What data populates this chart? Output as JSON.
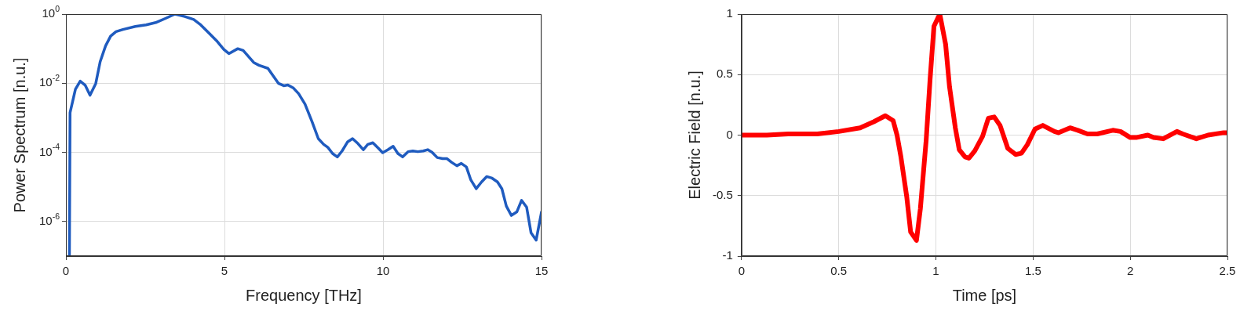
{
  "chart_data": [
    {
      "type": "line",
      "xlabel": "Frequency [THz]",
      "ylabel": "Power Spectrum [n.u.]",
      "log": "y",
      "grid": true,
      "legend": false,
      "marker": "none",
      "line_style": "solid",
      "xlim": [
        0,
        15
      ],
      "xticks": [
        0,
        5,
        10,
        15
      ],
      "ylim": [
        1e-07,
        1
      ],
      "yticks": [
        {
          "value": 1e-06,
          "label": "10$^{-6}$"
        },
        {
          "value": 0.0001,
          "label": "10$^{-4}$"
        },
        {
          "value": 0.01,
          "label": "10$^{-2}$"
        },
        {
          "value": 1,
          "label": "10$^{0}$"
        }
      ],
      "series": [
        {
          "color": "#1f5bbf",
          "x": [
            0.11,
            0.13,
            0.3,
            0.45,
            0.61,
            0.76,
            0.94,
            1.08,
            1.25,
            1.41,
            1.58,
            1.8,
            2.19,
            2.53,
            2.86,
            3.14,
            3.44,
            3.75,
            4.03,
            4.25,
            4.53,
            4.75,
            4.98,
            5.14,
            5.42,
            5.59,
            5.92,
            6.09,
            6.37,
            6.7,
            6.87,
            7.0,
            7.18,
            7.34,
            7.54,
            7.76,
            7.96,
            8.13,
            8.26,
            8.41,
            8.56,
            8.71,
            8.88,
            9.04,
            9.21,
            9.38,
            9.52,
            9.68,
            9.86,
            9.99,
            10.16,
            10.32,
            10.47,
            10.62,
            10.79,
            10.94,
            11.1,
            11.27,
            11.41,
            11.55,
            11.71,
            11.88,
            12.02,
            12.16,
            12.33,
            12.47,
            12.63,
            12.77,
            12.94,
            13.11,
            13.27,
            13.44,
            13.61,
            13.75,
            13.89,
            14.05,
            14.22,
            14.37,
            14.53,
            14.67,
            14.83,
            15.0
          ],
          "values": [
            1e-07,
            0.0014,
            0.0067,
            0.0115,
            0.0087,
            0.0045,
            0.0098,
            0.042,
            0.12,
            0.23,
            0.31,
            0.36,
            0.44,
            0.49,
            0.58,
            0.75,
            1.0,
            0.85,
            0.7,
            0.49,
            0.27,
            0.17,
            0.095,
            0.072,
            0.1,
            0.089,
            0.04,
            0.033,
            0.027,
            0.01,
            0.0085,
            0.0089,
            0.0072,
            0.005,
            0.0025,
            0.00078,
            0.00025,
            0.00017,
            0.00014,
            9.3e-05,
            7.4e-05,
            0.00011,
            0.0002,
            0.00025,
            0.00018,
            0.00012,
            0.00017,
            0.00019,
            0.00013,
            9.8e-05,
            0.00012,
            0.00015,
            9.3e-05,
            7.4e-05,
            0.000105,
            0.00011,
            0.000105,
            0.00011,
            0.00012,
            0.0001,
            7.1e-05,
            6.6e-05,
            6.6e-05,
            5.2e-05,
            4.1e-05,
            4.8e-05,
            3.8e-05,
            1.6e-05,
            8.9e-06,
            1.4e-05,
            2e-05,
            1.8e-05,
            1.4e-05,
            8.9e-06,
            2.8e-06,
            1.5e-06,
            1.9e-06,
            4.1e-06,
            2.6e-06,
            4.7e-07,
            2.9e-07,
            1.9e-06
          ]
        }
      ]
    },
    {
      "type": "line",
      "xlabel": "Time [ps]",
      "ylabel": "Electric Field [n.u.]",
      "grid": true,
      "legend": false,
      "marker": "none",
      "line_style": "solid",
      "xlim": [
        0,
        2.5
      ],
      "xticks": [
        0,
        0.5,
        1,
        1.5,
        2,
        2.5
      ],
      "ylim": [
        -1,
        1
      ],
      "yticks": [
        -1,
        -0.5,
        0,
        0.5,
        1
      ],
      "series": [
        {
          "color": "#ff0000",
          "x": [
            0,
            0.13,
            0.24,
            0.39,
            0.5,
            0.61,
            0.68,
            0.74,
            0.78,
            0.8,
            0.82,
            0.85,
            0.87,
            0.9,
            0.92,
            0.95,
            0.97,
            0.99,
            1.02,
            1.05,
            1.07,
            1.1,
            1.12,
            1.15,
            1.17,
            1.2,
            1.24,
            1.27,
            1.3,
            1.33,
            1.37,
            1.41,
            1.44,
            1.47,
            1.51,
            1.55,
            1.61,
            1.63,
            1.69,
            1.73,
            1.78,
            1.83,
            1.91,
            1.95,
            2.0,
            2.03,
            2.09,
            2.12,
            2.17,
            2.24,
            2.27,
            2.34,
            2.4,
            2.48,
            2.5
          ],
          "values": [
            0,
            0,
            0.01,
            0.01,
            0.03,
            0.06,
            0.11,
            0.16,
            0.12,
            0,
            -0.18,
            -0.51,
            -0.8,
            -0.87,
            -0.61,
            -0.04,
            0.46,
            0.9,
            1.0,
            0.75,
            0.4,
            0.06,
            -0.12,
            -0.18,
            -0.19,
            -0.13,
            -0.01,
            0.14,
            0.15,
            0.08,
            -0.11,
            -0.16,
            -0.15,
            -0.08,
            0.05,
            0.08,
            0.03,
            0.02,
            0.06,
            0.04,
            0.01,
            0.01,
            0.04,
            0.03,
            -0.02,
            -0.02,
            0,
            -0.02,
            -0.03,
            0.03,
            0.01,
            -0.03,
            0,
            0.02,
            0.02
          ]
        }
      ]
    }
  ]
}
